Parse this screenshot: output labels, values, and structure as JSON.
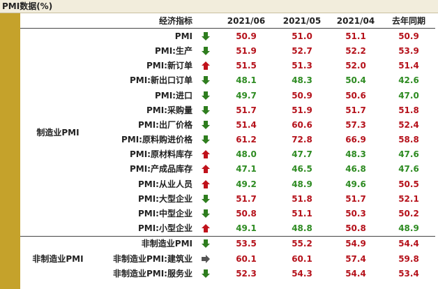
{
  "title": "PMI数据(%)",
  "columns": {
    "indicator": "经济指标",
    "c1": "2021/06",
    "c2": "2021/05",
    "c3": "2021/04",
    "c4": "去年同期"
  },
  "groups": [
    {
      "name": "制造业PMI",
      "rows": [
        {
          "label": "PMI",
          "arrow": "down",
          "v": [
            "50.9",
            "51.0",
            "51.1",
            "50.9"
          ],
          "c": [
            "red",
            "red",
            "red",
            "red"
          ]
        },
        {
          "label": "PMI:生产",
          "arrow": "down",
          "v": [
            "51.9",
            "52.7",
            "52.2",
            "53.9"
          ],
          "c": [
            "red",
            "red",
            "red",
            "red"
          ]
        },
        {
          "label": "PMI:新订单",
          "arrow": "up",
          "v": [
            "51.5",
            "51.3",
            "52.0",
            "51.4"
          ],
          "c": [
            "red",
            "red",
            "red",
            "red"
          ]
        },
        {
          "label": "PMI:新出口订单",
          "arrow": "down",
          "v": [
            "48.1",
            "48.3",
            "50.4",
            "42.6"
          ],
          "c": [
            "green",
            "green",
            "green",
            "green"
          ]
        },
        {
          "label": "PMI:进口",
          "arrow": "down",
          "v": [
            "49.7",
            "50.9",
            "50.6",
            "47.0"
          ],
          "c": [
            "green",
            "red",
            "red",
            "green"
          ]
        },
        {
          "label": "PMI:采购量",
          "arrow": "down",
          "v": [
            "51.7",
            "51.9",
            "51.7",
            "51.8"
          ],
          "c": [
            "red",
            "red",
            "red",
            "red"
          ]
        },
        {
          "label": "PMI:出厂价格",
          "arrow": "down",
          "v": [
            "51.4",
            "60.6",
            "57.3",
            "52.4"
          ],
          "c": [
            "red",
            "red",
            "red",
            "red"
          ]
        },
        {
          "label": "PMI:原料购进价格",
          "arrow": "down",
          "v": [
            "61.2",
            "72.8",
            "66.9",
            "58.8"
          ],
          "c": [
            "red",
            "red",
            "red",
            "red"
          ]
        },
        {
          "label": "PMI:原材料库存",
          "arrow": "up",
          "v": [
            "48.0",
            "47.7",
            "48.3",
            "47.6"
          ],
          "c": [
            "green",
            "green",
            "green",
            "green"
          ]
        },
        {
          "label": "PMI:产成品库存",
          "arrow": "up",
          "v": [
            "47.1",
            "46.5",
            "46.8",
            "47.6"
          ],
          "c": [
            "green",
            "green",
            "green",
            "green"
          ]
        },
        {
          "label": "PMI:从业人员",
          "arrow": "up",
          "v": [
            "49.2",
            "48.9",
            "49.6",
            "50.5"
          ],
          "c": [
            "green",
            "green",
            "green",
            "red"
          ]
        },
        {
          "label": "PMI:大型企业",
          "arrow": "down",
          "v": [
            "51.7",
            "51.8",
            "51.7",
            "52.1"
          ],
          "c": [
            "red",
            "red",
            "red",
            "red"
          ]
        },
        {
          "label": "PMI:中型企业",
          "arrow": "down",
          "v": [
            "50.8",
            "51.1",
            "50.3",
            "50.2"
          ],
          "c": [
            "red",
            "red",
            "red",
            "red"
          ]
        },
        {
          "label": "PMI:小型企业",
          "arrow": "up",
          "v": [
            "49.1",
            "48.8",
            "50.8",
            "48.9"
          ],
          "c": [
            "green",
            "green",
            "red",
            "green"
          ]
        }
      ]
    },
    {
      "name": "非制造业PMI",
      "rows": [
        {
          "label": "非制造业PMI",
          "arrow": "down",
          "v": [
            "53.5",
            "55.2",
            "54.9",
            "54.4"
          ],
          "c": [
            "red",
            "red",
            "red",
            "red"
          ]
        },
        {
          "label": "非制造业PMI:建筑业",
          "arrow": "right",
          "v": [
            "60.1",
            "60.1",
            "57.4",
            "59.8"
          ],
          "c": [
            "red",
            "red",
            "red",
            "red"
          ]
        },
        {
          "label": "非制造业PMI:服务业",
          "arrow": "down",
          "v": [
            "52.3",
            "54.3",
            "54.4",
            "53.4"
          ],
          "c": [
            "red",
            "red",
            "red",
            "red"
          ]
        }
      ]
    }
  ],
  "colors": {
    "red": "#b5121b",
    "green": "#2e8b22",
    "down-arrow": "#2e7d1e",
    "up-arrow": "#c0121b",
    "flat-arrow": "#555555"
  }
}
